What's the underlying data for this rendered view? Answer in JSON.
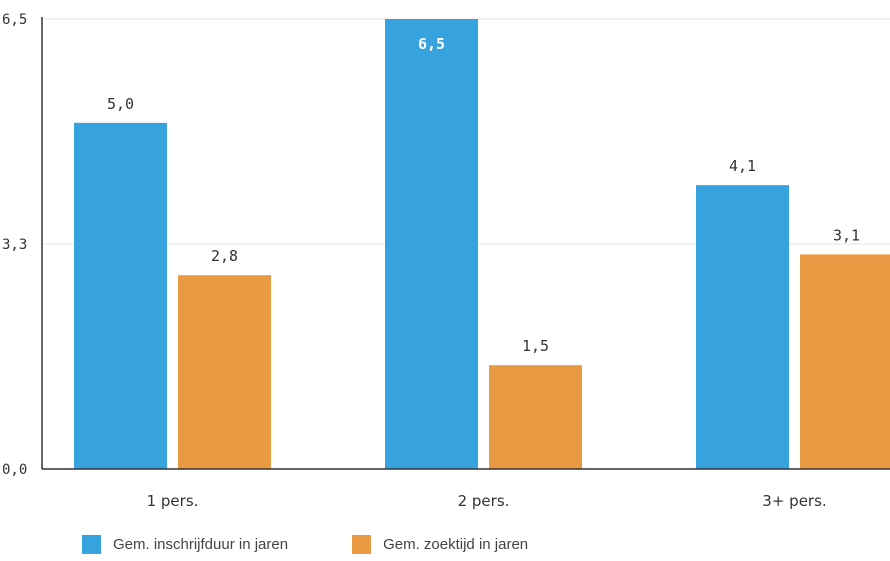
{
  "chart_data": {
    "type": "bar",
    "categories": [
      "1 pers.",
      "2 pers.",
      "3+ pers."
    ],
    "series": [
      {
        "name": "Gem. inschrijfduur in jaren",
        "color": "#36a3de",
        "values": [
          5.0,
          6.5,
          4.1
        ],
        "labels": [
          "5,0",
          "6,5",
          "4,1"
        ]
      },
      {
        "name": "Gem. zoektijd in jaren",
        "color": "#ea9a42",
        "values": [
          2.8,
          1.5,
          3.1
        ],
        "labels": [
          "2,8",
          "1,5",
          "3,1"
        ]
      }
    ],
    "y_ticks": [
      {
        "value": 0,
        "label": "0,0"
      },
      {
        "value": 3.25,
        "label": "3,3"
      },
      {
        "value": 6.5,
        "label": "6,5"
      }
    ],
    "ylim": [
      0,
      6.5
    ],
    "grid": true,
    "legend_position": "bottom-left"
  }
}
